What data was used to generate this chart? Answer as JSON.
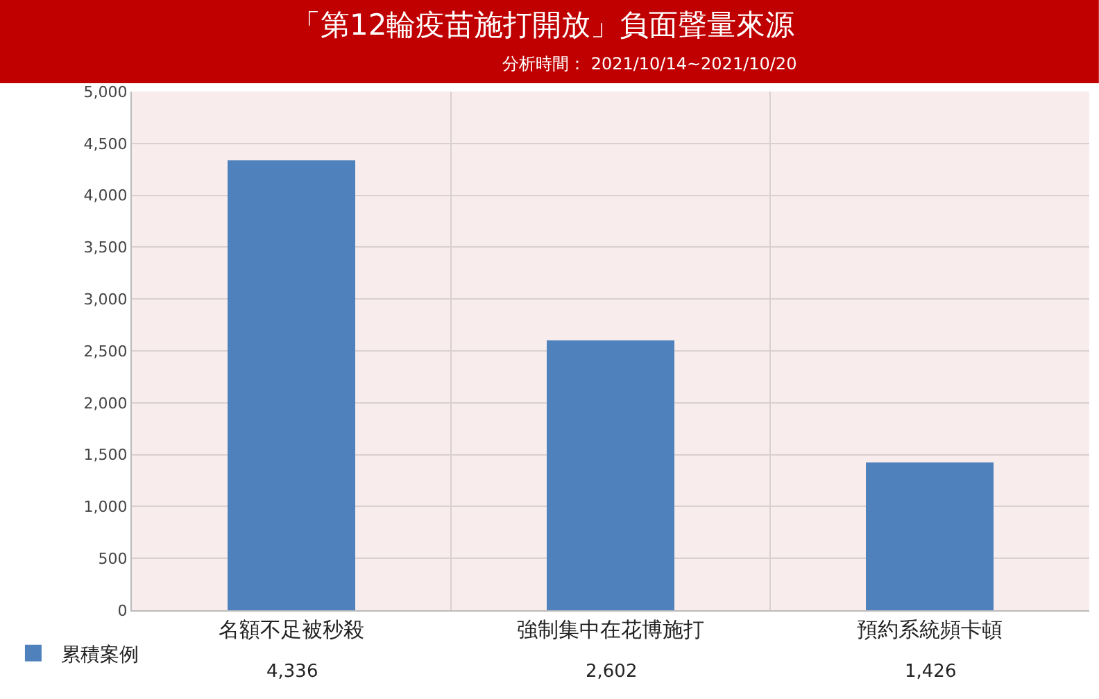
{
  "chart_data": {
    "type": "bar",
    "title": "「第12輪疫苗施打開放」負面聲量來源",
    "subtitle": "分析時間： 2021/10/14~2021/10/20",
    "categories": [
      "名額不足被秒殺",
      "強制集中在花博施打",
      "預約系統頻卡頓"
    ],
    "series": [
      {
        "name": "累積案例",
        "color": "#4f81bd",
        "values": [
          4336,
          2602,
          1426
        ],
        "value_labels": [
          "4,336",
          "2,602",
          "1,426"
        ]
      }
    ],
    "ylim": [
      0,
      5000
    ],
    "yticks": [
      {
        "value": 0,
        "label": "0"
      },
      {
        "value": 500,
        "label": "500"
      },
      {
        "value": 1000,
        "label": "1,000"
      },
      {
        "value": 1500,
        "label": "1,500"
      },
      {
        "value": 2000,
        "label": "2,000"
      },
      {
        "value": 2500,
        "label": "2,500"
      },
      {
        "value": 3000,
        "label": "3,000"
      },
      {
        "value": 3500,
        "label": "3,500"
      },
      {
        "value": 4000,
        "label": "4,000"
      },
      {
        "value": 4500,
        "label": "4,500"
      },
      {
        "value": 5000,
        "label": "5,000"
      }
    ],
    "grid": "y",
    "legend": "bottom left"
  }
}
